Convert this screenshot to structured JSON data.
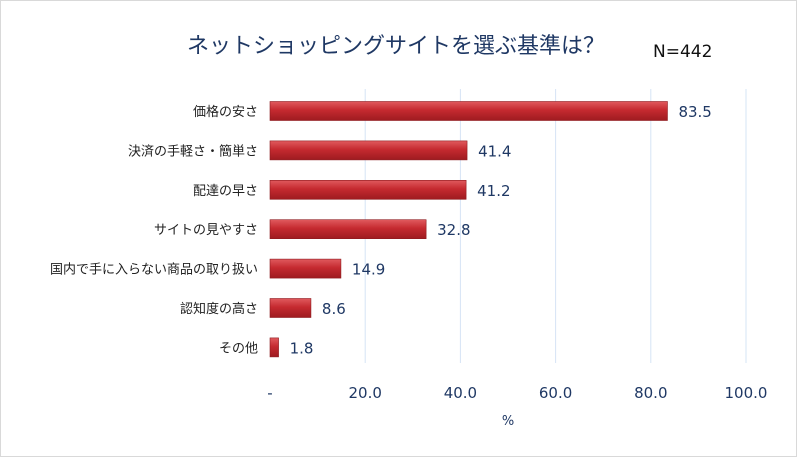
{
  "chart_data": {
    "type": "bar",
    "orientation": "horizontal",
    "title": "ネットショッピングサイトを選ぶ基準は？",
    "sample_size": "N=442",
    "categories": [
      "価格の安さ",
      "決済の手軽さ・簡単さ",
      "配達の早さ",
      "サイトの見やすさ",
      "国内で手に入らない商品の取り扱い",
      "認知度の高さ",
      "その他"
    ],
    "values": [
      83.5,
      41.4,
      41.2,
      32.8,
      14.9,
      8.6,
      1.8
    ],
    "value_labels": [
      "83.5",
      "41.4",
      "41.2",
      "32.8",
      "14.9",
      "8.6",
      "1.8"
    ],
    "xlabel": "%",
    "ylabel": "",
    "xlim": [
      0,
      100
    ],
    "x_ticks": [
      0,
      20,
      40,
      60,
      80,
      100
    ],
    "x_tick_labels": [
      "-",
      "20.0",
      "40.0",
      "60.0",
      "80.0",
      "100.0"
    ],
    "grid": "vertical",
    "legend": "none",
    "bar_color": "#c0272d",
    "grid_color": "#d6e4f5"
  }
}
